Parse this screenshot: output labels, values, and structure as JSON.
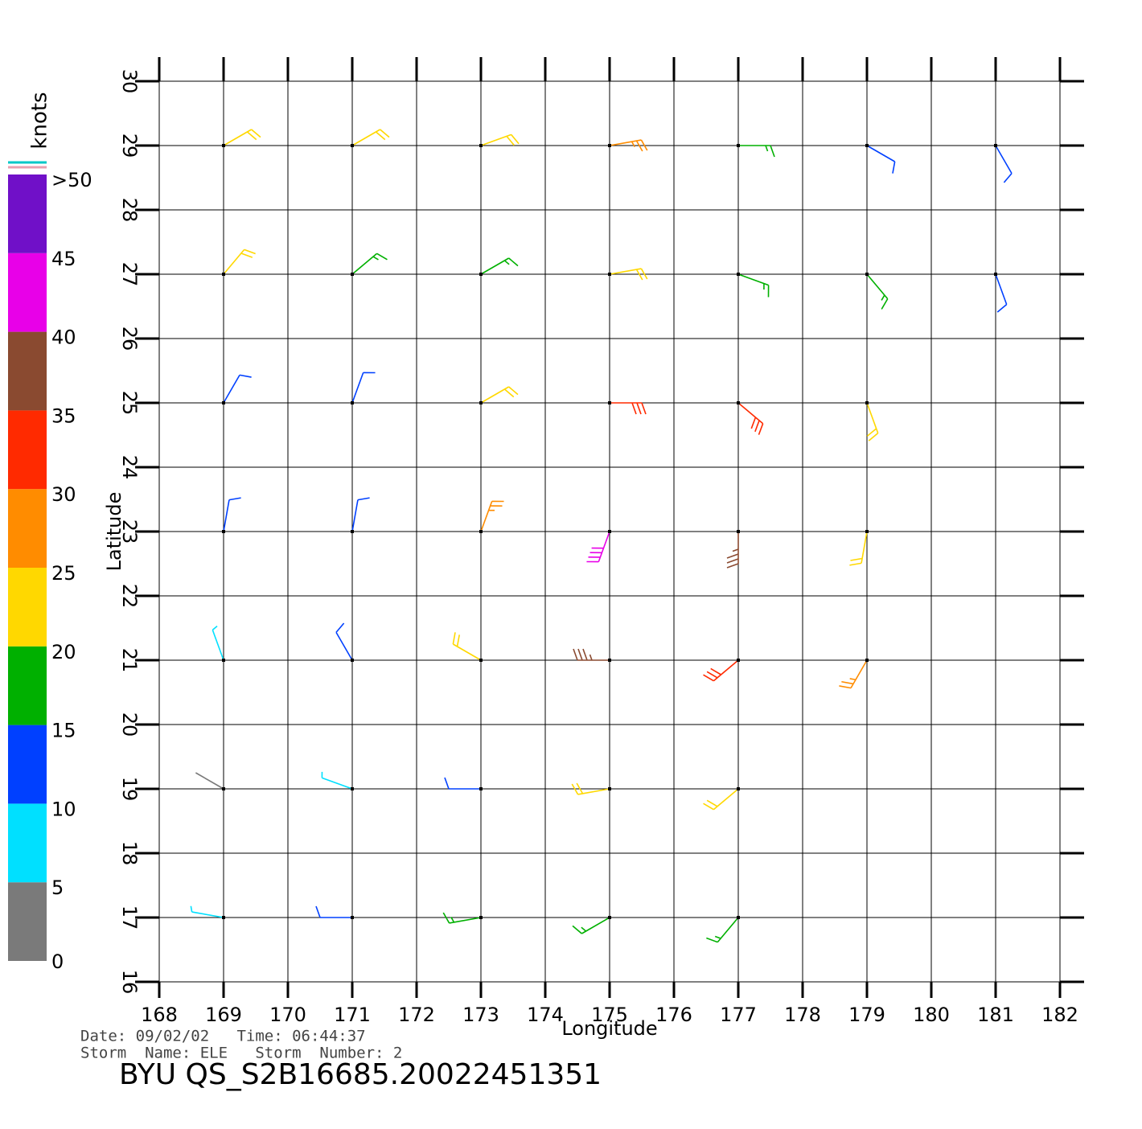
{
  "map": {
    "x_label": "Longitude",
    "y_label": "Latitude",
    "xlim": [
      168,
      182
    ],
    "ylim": [
      16,
      30
    ],
    "xticks": [
      168,
      169,
      170,
      171,
      172,
      173,
      174,
      175,
      176,
      177,
      178,
      179,
      180,
      181,
      182
    ],
    "yticks": [
      16,
      17,
      18,
      19,
      20,
      21,
      22,
      23,
      24,
      25,
      26,
      27,
      28,
      29,
      30
    ],
    "grid": true,
    "colorbar": {
      "title": "knots",
      "ticks": [
        0,
        5,
        10,
        15,
        20,
        25,
        30,
        35,
        40,
        45,
        {
          "value": 50,
          "label": ">50"
        }
      ],
      "colors": [
        "#7a7a7a",
        "#00e0ff",
        "#0040ff",
        "#00b000",
        "#ffd800",
        "#ff8c00",
        "#ff2a00",
        "#8a4a30",
        "#e800e8",
        "#7010c8"
      ]
    },
    "barbs": {
      "lon": [
        169,
        171,
        173,
        175,
        177,
        179,
        181,
        169,
        171,
        173,
        175,
        177,
        179,
        181,
        169,
        171,
        173,
        175,
        177,
        179,
        169,
        171,
        173,
        175,
        177,
        179,
        169,
        171,
        173,
        175,
        177,
        179,
        169,
        171,
        173,
        175,
        177,
        169,
        171,
        173,
        175,
        177
      ],
      "lat": [
        29,
        29,
        29,
        29,
        29,
        29,
        29,
        27,
        27,
        27,
        27,
        27,
        27,
        27,
        25,
        25,
        25,
        25,
        25,
        25,
        23,
        23,
        23,
        23,
        23,
        23,
        21,
        21,
        21,
        21,
        21,
        21,
        19,
        19,
        19,
        19,
        19,
        17,
        17,
        17,
        17,
        17
      ],
      "speed": [
        22,
        22,
        20,
        25,
        18,
        12,
        12,
        20,
        18,
        17,
        20,
        18,
        15,
        12,
        12,
        13,
        20,
        30,
        30,
        22,
        10,
        12,
        28,
        42,
        35,
        22,
        8,
        12,
        22,
        35,
        32,
        25,
        4,
        8,
        14,
        22,
        22,
        8,
        10,
        15,
        15,
        16
      ],
      "direction": [
        60,
        60,
        70,
        80,
        90,
        120,
        150,
        40,
        50,
        60,
        80,
        110,
        140,
        160,
        30,
        20,
        60,
        90,
        130,
        160,
        10,
        10,
        20,
        200,
        180,
        190,
        340,
        330,
        300,
        270,
        230,
        210,
        300,
        290,
        270,
        260,
        230,
        280,
        270,
        260,
        240,
        220
      ]
    },
    "footer": {
      "line1": "Date: 09/02/02   Time: 06:44:37",
      "line2": "Storm  Name: ELE   Storm  Number: 2",
      "title": "BYU  QS_S2B16685.20022451351"
    }
  }
}
